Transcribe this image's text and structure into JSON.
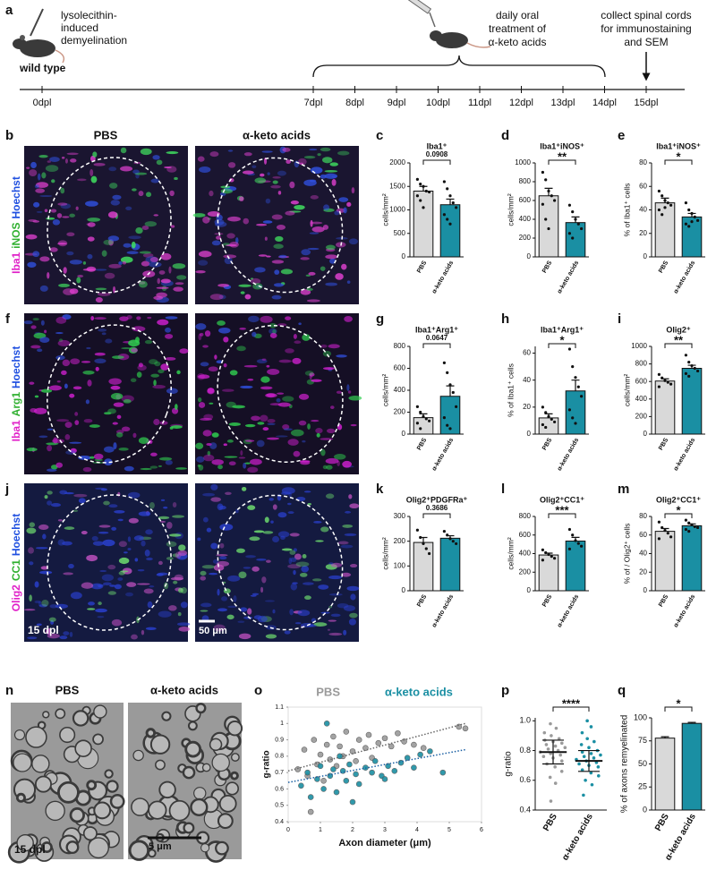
{
  "timeline": {
    "panel": "a",
    "strain": "wild type",
    "step1": [
      "lysolecithin-",
      "induced",
      "demyelination"
    ],
    "step2": [
      "daily oral",
      "treatment of",
      "α-keto acids"
    ],
    "step3": [
      "collect spinal cords",
      "for immunostaining",
      "and SEM"
    ],
    "ticks": [
      "0dpl",
      "7dpl",
      "8dpl",
      "9dpl",
      "10dpl",
      "11dpl",
      "12dpl",
      "13dpl",
      "14dpl",
      "15dpl"
    ]
  },
  "image_panels": [
    {
      "panel": "b",
      "titles": [
        "PBS",
        "α-keto acids"
      ],
      "stain": [
        "Iba1",
        "iNOS",
        "Hoechst"
      ]
    },
    {
      "panel": "f",
      "stain": [
        "Iba1",
        "Arg1",
        "Hoechst"
      ]
    },
    {
      "panel": "j",
      "stain": [
        "Olig2",
        "CC1",
        "Hoechst"
      ],
      "time": "15 dpl",
      "scale": "50 μm"
    },
    {
      "panel": "n",
      "titles": [
        "PBS",
        "α-keto acids"
      ],
      "time": "15 dpl",
      "scale": "5 μm"
    }
  ],
  "chart_data": [
    {
      "type": "bar",
      "panel": "c",
      "title": "Iba1⁺",
      "ylabel": "cells/mm²",
      "categories": [
        "PBS",
        "α-keto acids"
      ],
      "colors": [
        "#d9d9d9",
        "#1a8fa3"
      ],
      "values": [
        1400,
        1110
      ],
      "errors": [
        100,
        120
      ],
      "points": [
        [
          1650,
          1550,
          1500,
          1400,
          1380,
          1300,
          1200,
          1050
        ],
        [
          1600,
          1450,
          1300,
          1150,
          1050,
          900,
          800,
          700
        ]
      ],
      "annotation": "0.0908",
      "ylim": [
        0,
        2000
      ],
      "yticks": [
        0,
        500,
        1000,
        1500,
        2000
      ]
    },
    {
      "type": "bar",
      "panel": "d",
      "title": "Iba1⁺iNOS⁺",
      "ylabel": "cells/mm²",
      "categories": [
        "PBS",
        "α-keto acids"
      ],
      "colors": [
        "#d9d9d9",
        "#1a8fa3"
      ],
      "values": [
        650,
        365
      ],
      "errors": [
        80,
        60
      ],
      "points": [
        [
          900,
          820,
          700,
          650,
          600,
          560,
          400,
          300
        ],
        [
          550,
          480,
          400,
          350,
          300,
          250,
          200
        ]
      ],
      "annotation": "**",
      "ylim": [
        0,
        1000
      ],
      "yticks": [
        0,
        200,
        400,
        600,
        800,
        1000
      ]
    },
    {
      "type": "bar",
      "panel": "e",
      "title": "Iba1⁺iNOS⁺",
      "ylabel": "% of Iba1⁺ cells",
      "categories": [
        "PBS",
        "α-keto acids"
      ],
      "colors": [
        "#d9d9d9",
        "#1a8fa3"
      ],
      "values": [
        46,
        34
      ],
      "errors": [
        4,
        3
      ],
      "points": [
        [
          56,
          52,
          48,
          46,
          44,
          40,
          36,
          42
        ],
        [
          46,
          40,
          37,
          34,
          31,
          28,
          26,
          30
        ]
      ],
      "annotation": "*",
      "ylim": [
        0,
        80
      ],
      "yticks": [
        0,
        20,
        40,
        60,
        80
      ]
    },
    {
      "type": "bar",
      "panel": "g",
      "title": "Iba1⁺Arg1⁺",
      "ylabel": "cells/mm²",
      "categories": [
        "PBS",
        "α-keto acids"
      ],
      "colors": [
        "#d9d9d9",
        "#1a8fa3"
      ],
      "values": [
        150,
        345
      ],
      "errors": [
        35,
        95
      ],
      "points": [
        [
          250,
          200,
          160,
          140,
          120,
          100,
          50
        ],
        [
          650,
          560,
          450,
          380,
          250,
          150,
          80,
          50
        ]
      ],
      "annotation": "0.0647",
      "ylim": [
        0,
        800
      ],
      "yticks": [
        0,
        200,
        400,
        600,
        800
      ]
    },
    {
      "type": "bar",
      "panel": "h",
      "title": "Iba1⁺Arg1⁺",
      "ylabel": "% of Iba1⁺ cells",
      "categories": [
        "PBS",
        "α-keto acids"
      ],
      "colors": [
        "#d9d9d9",
        "#1a8fa3"
      ],
      "values": [
        12,
        32
      ],
      "errors": [
        3,
        8
      ],
      "points": [
        [
          20,
          16,
          13,
          11,
          9,
          7,
          5
        ],
        [
          63,
          50,
          42,
          35,
          28,
          18,
          12,
          8
        ]
      ],
      "annotation": "*",
      "ylim": [
        0,
        65
      ],
      "yticks": [
        0,
        20,
        40,
        60
      ]
    },
    {
      "type": "bar",
      "panel": "i",
      "title": "Olig2⁺",
      "ylabel": "cells/mm²",
      "categories": [
        "PBS",
        "α-keto acids"
      ],
      "colors": [
        "#d9d9d9",
        "#1a8fa3"
      ],
      "values": [
        605,
        750
      ],
      "errors": [
        25,
        35
      ],
      "points": [
        [
          680,
          640,
          610,
          590,
          570,
          540
        ],
        [
          900,
          820,
          780,
          750,
          720,
          690,
          660
        ]
      ],
      "annotation": "**",
      "ylim": [
        0,
        1000
      ],
      "yticks": [
        0,
        200,
        400,
        600,
        800,
        1000
      ]
    },
    {
      "type": "bar",
      "panel": "k",
      "title": "Olig2⁺PDGFRa⁺",
      "ylabel": "cells/mm²",
      "categories": [
        "PBS",
        "α-keto acids"
      ],
      "colors": [
        "#d9d9d9",
        "#1a8fa3"
      ],
      "values": [
        195,
        212
      ],
      "errors": [
        20,
        10
      ],
      "points": [
        [
          245,
          215,
          190,
          170,
          150
        ],
        [
          240,
          225,
          210,
          200,
          190
        ]
      ],
      "annotation": "0.3686",
      "ylim": [
        0,
        300
      ],
      "yticks": [
        0,
        100,
        200,
        300
      ]
    },
    {
      "type": "bar",
      "panel": "l",
      "title": "Olig2⁺CC1⁺",
      "ylabel": "cells/mm²",
      "categories": [
        "PBS",
        "α-keto acids"
      ],
      "colors": [
        "#d9d9d9",
        "#1a8fa3"
      ],
      "values": [
        385,
        535
      ],
      "errors": [
        20,
        40
      ],
      "points": [
        [
          440,
          410,
          390,
          370,
          350,
          330
        ],
        [
          660,
          600,
          540,
          510,
          480,
          450
        ]
      ],
      "annotation": "***",
      "ylim": [
        0,
        800
      ],
      "yticks": [
        0,
        200,
        400,
        600,
        800
      ]
    },
    {
      "type": "bar",
      "panel": "m",
      "title": "Olig2⁺CC1⁺",
      "ylabel": "% of / Olig2⁺ cells",
      "categories": [
        "PBS",
        "α-keto acids"
      ],
      "colors": [
        "#d9d9d9",
        "#1a8fa3"
      ],
      "values": [
        64,
        70
      ],
      "errors": [
        3,
        2
      ],
      "points": [
        [
          74,
          68,
          65,
          62,
          58,
          56
        ],
        [
          76,
          73,
          71,
          69,
          68,
          66,
          64
        ]
      ],
      "annotation": "*",
      "ylim": [
        0,
        80
      ],
      "yticks": [
        0,
        20,
        40,
        60,
        80
      ]
    },
    {
      "type": "scatter",
      "panel": "o",
      "xlabel": "Axon diameter (μm)",
      "ylabel": "g-ratio",
      "series": [
        {
          "name": "PBS",
          "color": "#9a9a9a",
          "x": [
            0.3,
            0.5,
            0.6,
            0.8,
            0.9,
            1.0,
            1.1,
            1.2,
            1.3,
            1.4,
            1.5,
            1.6,
            1.7,
            1.8,
            2.0,
            2.1,
            2.2,
            2.4,
            2.5,
            2.6,
            2.8,
            3.0,
            3.2,
            3.4,
            3.6,
            3.9,
            4.2,
            5.3,
            5.5,
            0.7
          ],
          "y": [
            0.72,
            0.84,
            0.68,
            0.9,
            0.75,
            0.81,
            0.65,
            0.87,
            0.78,
            0.92,
            0.74,
            0.86,
            0.8,
            0.95,
            0.83,
            0.77,
            0.9,
            0.85,
            0.93,
            0.79,
            0.88,
            0.91,
            0.86,
            0.94,
            0.89,
            0.87,
            0.85,
            0.98,
            0.97,
            0.46
          ],
          "trend": {
            "x": [
              0,
              5.5
            ],
            "y": [
              0.71,
              1.0
            ]
          }
        },
        {
          "name": "α-keto acids",
          "color": "#1a8fa3",
          "x": [
            0.4,
            0.6,
            0.7,
            0.9,
            1.0,
            1.1,
            1.3,
            1.4,
            1.5,
            1.7,
            1.8,
            1.9,
            2.1,
            2.2,
            2.4,
            2.6,
            2.7,
            2.9,
            3.1,
            3.3,
            3.5,
            3.7,
            3.9,
            4.1,
            4.4,
            4.8,
            1.2,
            2.0,
            1.6,
            3.0
          ],
          "y": [
            0.62,
            0.7,
            0.55,
            0.66,
            0.74,
            0.6,
            0.68,
            0.72,
            0.58,
            0.71,
            0.65,
            0.75,
            0.69,
            0.63,
            0.73,
            0.7,
            0.77,
            0.68,
            0.74,
            0.71,
            0.76,
            0.79,
            0.73,
            0.81,
            0.83,
            0.7,
            1.0,
            0.52,
            0.8,
            0.66
          ],
          "trend": {
            "x": [
              0,
              5.5
            ],
            "y": [
              0.64,
              0.84
            ]
          }
        }
      ],
      "xlim": [
        0,
        6
      ],
      "xticks": [
        0,
        1,
        2,
        3,
        4,
        5,
        6
      ],
      "ylim": [
        0.4,
        1.1
      ],
      "yticks": [
        0.4,
        0.5,
        0.6,
        0.7,
        0.8,
        0.9,
        1,
        1.1
      ]
    },
    {
      "type": "swarm",
      "panel": "p",
      "ylabel": "g-ratio",
      "categories": [
        "PBS",
        "α-keto acids"
      ],
      "colors": [
        "#9a9a9a",
        "#1a8fa3"
      ],
      "values": [
        0.79,
        0.73
      ],
      "errors": [
        0.08,
        0.07
      ],
      "points": [
        [
          0.46,
          0.58,
          0.62,
          0.66,
          0.69,
          0.71,
          0.73,
          0.75,
          0.76,
          0.77,
          0.78,
          0.79,
          0.8,
          0.81,
          0.82,
          0.83,
          0.84,
          0.85,
          0.86,
          0.87,
          0.88,
          0.9,
          0.92,
          0.95,
          0.98
        ],
        [
          0.5,
          0.57,
          0.6,
          0.63,
          0.65,
          0.67,
          0.69,
          0.7,
          0.71,
          0.72,
          0.73,
          0.74,
          0.75,
          0.76,
          0.77,
          0.78,
          0.79,
          0.8,
          0.82,
          0.84,
          0.86,
          0.88,
          0.92,
          0.96,
          1.0
        ]
      ],
      "annotation": "****",
      "ylim": [
        0.4,
        1.02
      ],
      "yticks": [
        0.4,
        0.6,
        0.8,
        {
          "value": 1,
          "label": "1.0"
        }
      ]
    },
    {
      "type": "bar",
      "panel": "q",
      "ylabel": "% of axons remyelinated",
      "categories": [
        "PBS",
        "α-keto acids"
      ],
      "colors": [
        "#d9d9d9",
        "#1a8fa3"
      ],
      "values": [
        78,
        94
      ],
      "errors": [
        1.5,
        1
      ],
      "annotation": "*",
      "ylim": [
        0,
        100
      ],
      "yticks": [
        0,
        25,
        50,
        75,
        100
      ]
    }
  ]
}
